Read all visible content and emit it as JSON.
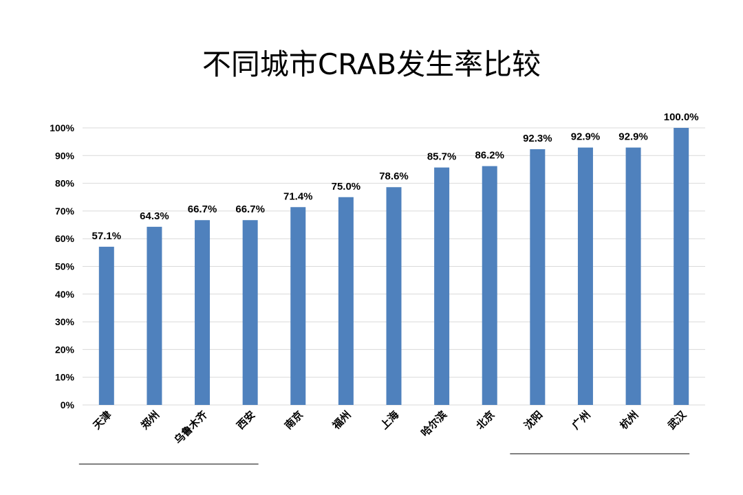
{
  "chart_data": {
    "type": "bar",
    "title": "不同城市CRAB发生率比较",
    "categories": [
      "天津",
      "郑州",
      "乌鲁木齐",
      "西安",
      "南京",
      "福州",
      "上海",
      "哈尔滨",
      "北京",
      "沈阳",
      "广州",
      "杭州",
      "武汉"
    ],
    "values": [
      57.1,
      64.3,
      66.7,
      66.7,
      71.4,
      75.0,
      78.6,
      85.7,
      86.2,
      92.3,
      92.9,
      92.9,
      100.0
    ],
    "data_labels": [
      "57.1%",
      "64.3%",
      "66.7%",
      "66.7%",
      "71.4%",
      "75.0%",
      "78.6%",
      "85.7%",
      "86.2%",
      "92.3%",
      "92.9%",
      "92.9%",
      "100.0%"
    ],
    "y_ticks": [
      "0%",
      "10%",
      "20%",
      "30%",
      "40%",
      "50%",
      "60%",
      "70%",
      "80%",
      "90%",
      "100%"
    ],
    "ylim": [
      0,
      100
    ],
    "grid": true,
    "bar_color": "#4f81bd",
    "grid_color": "#d9d9d9",
    "underline_groups": [
      {
        "from": "天津",
        "to": "西安"
      },
      {
        "from": "沈阳",
        "to": "武汉"
      }
    ]
  }
}
